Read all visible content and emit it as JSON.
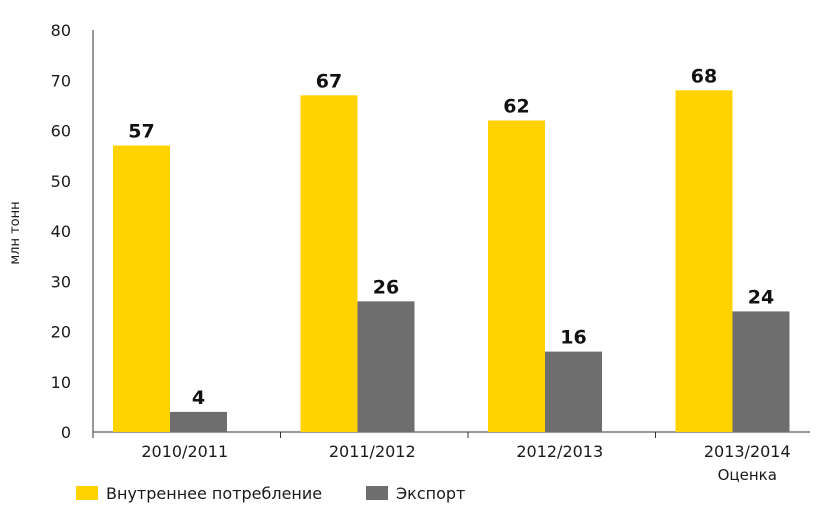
{
  "chart_data": {
    "type": "bar",
    "categories": [
      "2010/2011",
      "2011/2012",
      "2012/2013",
      "2013/2014"
    ],
    "category_sublabels": [
      "",
      "",
      "",
      "Оценка"
    ],
    "series": [
      {
        "name": "Внутреннее потребление",
        "values": [
          57,
          67,
          62,
          68
        ],
        "color": "#FFD200"
      },
      {
        "name": "Экспорт",
        "values": [
          4,
          26,
          16,
          24
        ],
        "color": "#6E6E6E"
      }
    ],
    "ylabel": "млн тонн",
    "ylim": [
      0,
      80
    ],
    "yticks": [
      0,
      10,
      20,
      30,
      40,
      50,
      60,
      70,
      80
    ],
    "grid": false,
    "legend_position": "bottom-left",
    "data_labels": true
  }
}
